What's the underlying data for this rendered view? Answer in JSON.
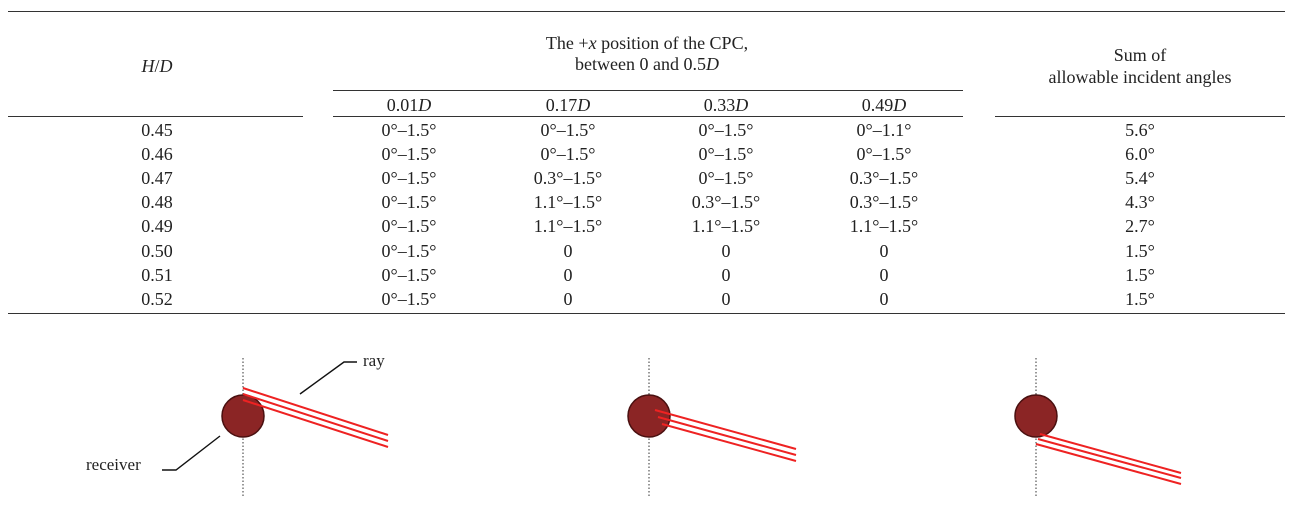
{
  "table": {
    "header": {
      "hd_label_H": "H",
      "hd_label_slash": "/",
      "hd_label_D": "D",
      "cpc_line1_pre": "The +",
      "cpc_line1_var": "x",
      "cpc_line1_post": " position of the CPC,",
      "cpc_line2_pre": "between 0 and 0.5",
      "cpc_line2_var": "D",
      "sum_line1": "Sum of",
      "sum_line2": "allowable incident angles",
      "subcols": [
        {
          "num": "0.01",
          "var": "D"
        },
        {
          "num": "0.17",
          "var": "D"
        },
        {
          "num": "0.33",
          "var": "D"
        },
        {
          "num": "0.49",
          "var": "D"
        }
      ]
    },
    "rows": [
      {
        "hd": "0.45",
        "c1": "0°–1.5°",
        "c2": "0°–1.5°",
        "c3": "0°–1.5°",
        "c4": "0°–1.1°",
        "sum": "5.6°"
      },
      {
        "hd": "0.46",
        "c1": "0°–1.5°",
        "c2": "0°–1.5°",
        "c3": "0°–1.5°",
        "c4": "0°–1.5°",
        "sum": "6.0°"
      },
      {
        "hd": "0.47",
        "c1": "0°–1.5°",
        "c2": "0.3°–1.5°",
        "c3": "0°–1.5°",
        "c4": "0.3°–1.5°",
        "sum": "5.4°"
      },
      {
        "hd": "0.48",
        "c1": "0°–1.5°",
        "c2": "1.1°–1.5°",
        "c3": "0.3°–1.5°",
        "c4": "0.3°–1.5°",
        "sum": "4.3°"
      },
      {
        "hd": "0.49",
        "c1": "0°–1.5°",
        "c2": "1.1°–1.5°",
        "c3": "1.1°–1.5°",
        "c4": "1.1°–1.5°",
        "sum": "2.7°"
      },
      {
        "hd": "0.50",
        "c1": "0°–1.5°",
        "c2": "0",
        "c3": "0",
        "c4": "0",
        "sum": "1.5°"
      },
      {
        "hd": "0.51",
        "c1": "0°–1.5°",
        "c2": "0",
        "c3": "0",
        "c4": "0",
        "sum": "1.5°"
      },
      {
        "hd": "0.52",
        "c1": "0°–1.5°",
        "c2": "0",
        "c3": "0",
        "c4": "0",
        "sum": "1.5°"
      }
    ]
  },
  "figure": {
    "label_ray": "ray",
    "label_receiver": "receiver",
    "receiver_color": "#8b2525",
    "ray_color": "#ee2222"
  }
}
